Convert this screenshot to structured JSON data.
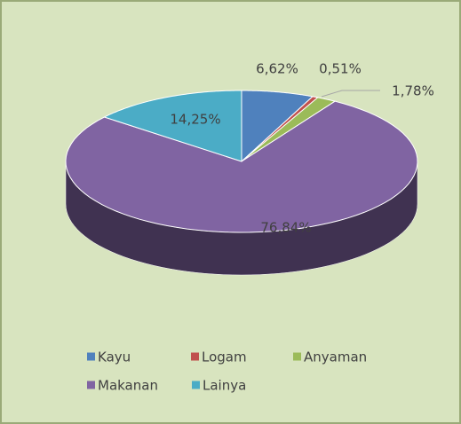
{
  "chart_data": {
    "type": "pie",
    "categories": [
      "Kayu",
      "Logam",
      "Anyaman",
      "Makanan",
      "Lainya"
    ],
    "values": [
      6.62,
      0.51,
      1.78,
      76.84,
      14.25
    ],
    "value_labels": [
      "6,62%",
      "0,51%",
      "1,78%",
      "76,84%",
      "14,25%"
    ],
    "colors": [
      "#4f81bd",
      "#c0504d",
      "#9bbb59",
      "#8064a2",
      "#4bacc6"
    ],
    "legend": "bottom"
  }
}
